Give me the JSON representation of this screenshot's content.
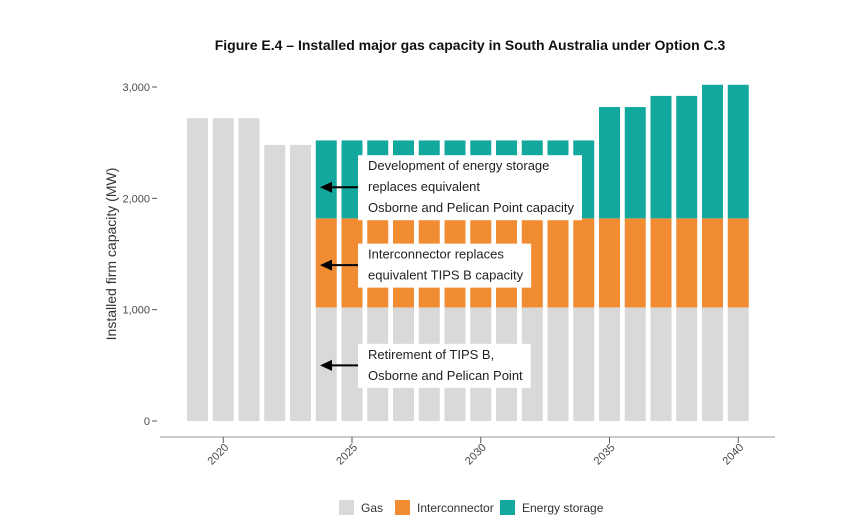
{
  "chart_data": {
    "type": "bar",
    "stacked": true,
    "title": "Figure E.4 – Installed major gas capacity in South Australia under Option C.3",
    "ylabel": "Installed firm capacity (MW)",
    "xlabel": "",
    "ylim": [
      0,
      3000
    ],
    "yticks": [
      0,
      1000,
      2000,
      3000
    ],
    "ytick_labels": [
      "0",
      "1,000",
      "2,000",
      "3,000"
    ],
    "xticks": [
      2020,
      2025,
      2030,
      2035,
      2040
    ],
    "grid": false,
    "legend_position": "bottom",
    "categories": [
      2019,
      2020,
      2021,
      2022,
      2023,
      2024,
      2025,
      2026,
      2027,
      2028,
      2029,
      2030,
      2031,
      2032,
      2033,
      2034,
      2035,
      2036,
      2037,
      2038,
      2039,
      2040
    ],
    "series": [
      {
        "name": "Gas",
        "color": "#d9d9d9",
        "values": [
          2720,
          2720,
          2720,
          2480,
          2480,
          1020,
          1020,
          1020,
          1020,
          1020,
          1020,
          1020,
          1020,
          1020,
          1020,
          1020,
          1020,
          1020,
          1020,
          1020,
          1020,
          1020
        ]
      },
      {
        "name": "Interconnector",
        "color": "#f28c33",
        "values": [
          0,
          0,
          0,
          0,
          0,
          800,
          800,
          800,
          800,
          800,
          800,
          800,
          800,
          800,
          800,
          800,
          800,
          800,
          800,
          800,
          800,
          800
        ]
      },
      {
        "name": "Energy storage",
        "color": "#13a89e",
        "values": [
          0,
          0,
          0,
          0,
          0,
          700,
          700,
          700,
          700,
          700,
          700,
          700,
          700,
          700,
          700,
          700,
          1000,
          1000,
          1100,
          1100,
          1200,
          1200
        ]
      }
    ],
    "annotations": [
      {
        "lines": [
          "Development of energy storage",
          "replaces equivalent",
          "Osborne and Pelican Point capacity"
        ],
        "arrow_y": 2100
      },
      {
        "lines": [
          "Interconnector replaces",
          "equivalent TIPS B capacity"
        ],
        "arrow_y": 1400
      },
      {
        "lines": [
          "Retirement of TIPS B,",
          "Osborne and Pelican Point"
        ],
        "arrow_y": 500
      }
    ]
  }
}
